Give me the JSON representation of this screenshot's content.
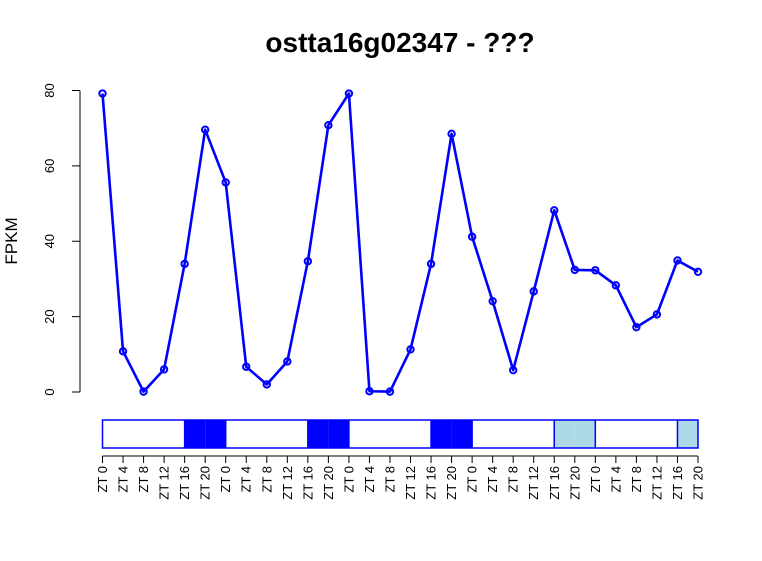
{
  "chart_data": {
    "type": "line",
    "title": "ostta16g02347 - ???",
    "xlabel": "",
    "ylabel": "FPKM",
    "ylim": [
      0,
      80
    ],
    "yticks": [
      "0",
      "20",
      "40",
      "60",
      "80"
    ],
    "categories": [
      "ZT 0",
      "ZT 4",
      "ZT 8",
      "ZT 12",
      "ZT 16",
      "ZT 20",
      "ZT 0",
      "ZT 4",
      "ZT 8",
      "ZT 12",
      "ZT 16",
      "ZT 20",
      "ZT 0",
      "ZT 4",
      "ZT 8",
      "ZT 12",
      "ZT 16",
      "ZT 20",
      "ZT 0",
      "ZT 4",
      "ZT 8",
      "ZT 12",
      "ZT 16",
      "ZT 20",
      "ZT 0",
      "ZT 4",
      "ZT 8",
      "ZT 12",
      "ZT 16",
      "ZT 20"
    ],
    "series": [
      {
        "values": [
          79.2,
          10.8,
          0.1,
          6.0,
          34.0,
          69.6,
          55.6,
          6.7,
          2.0,
          8.1,
          34.7,
          70.8,
          79.2,
          0.2,
          0.1,
          11.3,
          34.0,
          68.5,
          41.2,
          24.1,
          5.8,
          26.7,
          48.2,
          32.4,
          32.3,
          28.3,
          17.2,
          20.6,
          34.9,
          31.9
        ],
        "color": "#0000ff"
      }
    ],
    "light_bar": {
      "segments": [
        "white",
        "white",
        "white",
        "white",
        "blue",
        "blue",
        "white",
        "white",
        "white",
        "white",
        "blue",
        "blue",
        "white",
        "white",
        "white",
        "white",
        "blue",
        "blue",
        "white",
        "white",
        "white",
        "white",
        "lightblue",
        "lightblue",
        "white",
        "white",
        "white",
        "white",
        "lightblue"
      ],
      "colors": {
        "white": "#ffffff",
        "blue": "#0000ff",
        "lightblue": "#add8e6"
      },
      "border": "#0000ff"
    }
  }
}
